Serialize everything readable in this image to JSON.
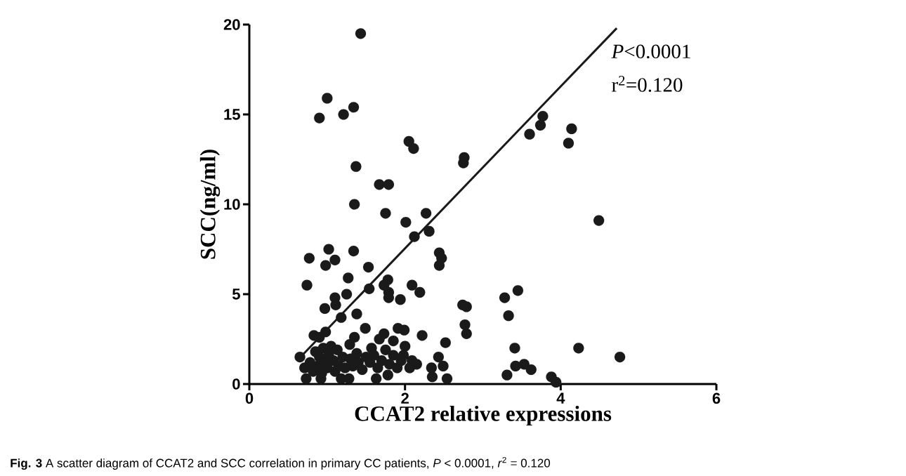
{
  "chart_data": {
    "type": "scatter",
    "xlabel": "CCAT2 relative expressions",
    "ylabel": "SCC(ng/ml)",
    "xlim": [
      0,
      6
    ],
    "ylim": [
      0,
      20
    ],
    "xticks": [
      0,
      2,
      4,
      6
    ],
    "yticks": [
      0,
      5,
      10,
      15,
      20
    ],
    "marker": "circle",
    "annotations": [
      "*P*<0.0001",
      "r$^{2}$=0.120",
      "**Fig. 3** A scatter diagram of CCAT2 and SCC correlation in primary CC patients, *P* < 0.0001, *r*$^{2}$ = 0.120"
    ],
    "series": [
      {
        "type": "scatter",
        "color": "#1a1a1a",
        "x": [
          1.43,
          1.0,
          0.9,
          1.21,
          1.34,
          2.05,
          2.11,
          2.76,
          2.75,
          1.37,
          1.67,
          1.79,
          1.35,
          1.75,
          2.27,
          2.01,
          2.31,
          2.12,
          2.44,
          2.47,
          2.44,
          0.77,
          1.02,
          0.98,
          1.1,
          1.34,
          1.53,
          3.77,
          3.74,
          3.6,
          4.14,
          4.1,
          4.49,
          3.45,
          3.28,
          3.33,
          2.74,
          2.79,
          2.77,
          2.79,
          3.41,
          4.23,
          4.76,
          3.42,
          3.53,
          3.62,
          3.31,
          3.88,
          3.94,
          0.74,
          1.27,
          1.25,
          1.1,
          1.11,
          0.97,
          1.54,
          1.78,
          1.73,
          1.79,
          1.79,
          1.94,
          2.09,
          2.19,
          1.18,
          1.38,
          1.49,
          1.91,
          1.99,
          2.22,
          2.52,
          0.83,
          0.98,
          0.9,
          1.35,
          1.29,
          1.73,
          1.67,
          1.85,
          1.57,
          2.0,
          1.98,
          2.09,
          2.06,
          2.43,
          2.49,
          2.34,
          2.35,
          2.54,
          0.65,
          0.71,
          0.73,
          0.92,
          1.18,
          1.28,
          1.63,
          1.78,
          0.78,
          0.82,
          0.85,
          0.88,
          0.9,
          0.93,
          0.95,
          0.97,
          1.0,
          1.02,
          1.05,
          1.08,
          1.1,
          1.13,
          1.15,
          1.2,
          1.23,
          1.3,
          1.33,
          1.38,
          1.4,
          1.45,
          1.5,
          1.55,
          1.6,
          1.65,
          1.7,
          1.75,
          1.8,
          1.85,
          1.9,
          1.95,
          2.15
        ],
        "values": [
          19.5,
          15.9,
          14.8,
          15.0,
          15.4,
          13.5,
          13.1,
          12.6,
          12.3,
          12.1,
          11.1,
          11.1,
          10.0,
          9.5,
          9.5,
          9.0,
          8.5,
          8.2,
          7.3,
          7.0,
          6.6,
          7.0,
          7.5,
          6.6,
          6.9,
          7.4,
          6.5,
          14.9,
          14.4,
          13.9,
          14.2,
          13.4,
          9.1,
          5.2,
          4.8,
          3.8,
          4.4,
          4.3,
          3.3,
          2.8,
          2.0,
          2.0,
          1.5,
          1.0,
          1.1,
          0.8,
          0.5,
          0.4,
          0.1,
          5.5,
          5.9,
          5.0,
          4.8,
          4.4,
          4.2,
          5.3,
          5.8,
          5.5,
          5.1,
          4.8,
          4.7,
          5.5,
          5.1,
          3.7,
          3.9,
          3.1,
          3.1,
          3.0,
          2.7,
          2.3,
          2.7,
          2.9,
          2.6,
          2.6,
          2.2,
          2.8,
          2.5,
          2.4,
          2.0,
          2.1,
          1.6,
          1.3,
          0.9,
          1.5,
          1.0,
          0.9,
          0.4,
          0.3,
          1.5,
          0.9,
          0.3,
          0.3,
          0.3,
          0.3,
          0.3,
          0.5,
          1.2,
          0.7,
          1.8,
          1.0,
          1.5,
          0.6,
          2.0,
          1.2,
          0.9,
          1.6,
          2.1,
          1.3,
          0.7,
          1.9,
          1.0,
          1.5,
          0.9,
          1.4,
          1.0,
          1.7,
          1.2,
          0.8,
          1.5,
          1.2,
          1.6,
          0.9,
          1.3,
          1.9,
          1.1,
          1.6,
          0.9,
          1.3,
          1.1
        ]
      },
      {
        "type": "line",
        "color": "#1a1a1a",
        "marker": "none",
        "x": [
          0.68,
          4.72
        ],
        "values": [
          1.6,
          19.8
        ]
      }
    ]
  }
}
